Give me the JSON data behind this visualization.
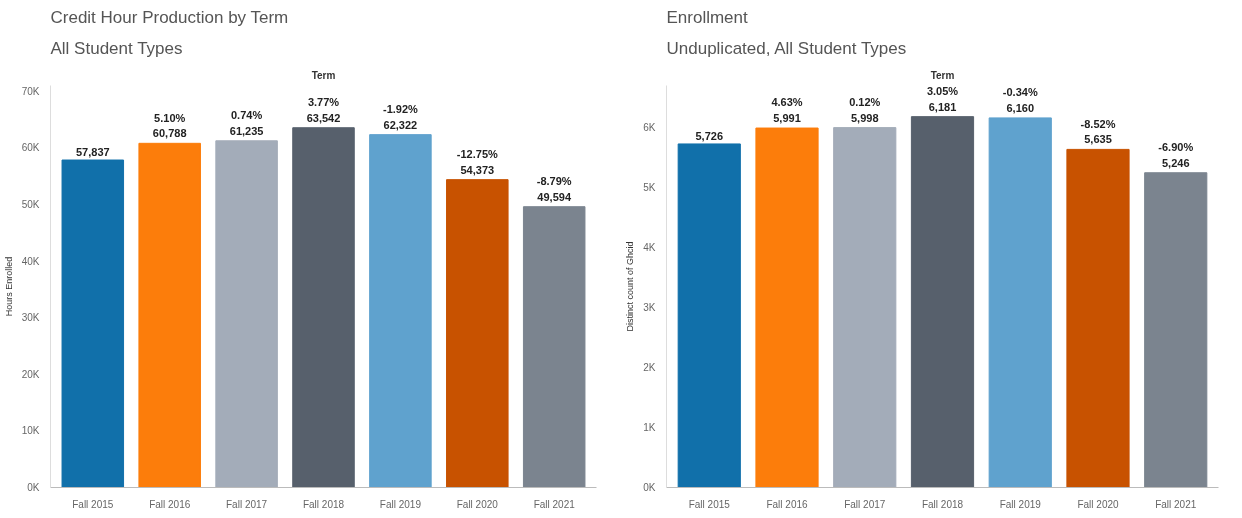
{
  "chart_data": [
    {
      "type": "bar",
      "title": "Credit Hour Production by Term",
      "subtitle": "All Student Types",
      "xlabel": "Term",
      "ylabel": "Hours Enrolled",
      "categories": [
        "Fall 2015",
        "Fall 2016",
        "Fall 2017",
        "Fall 2018",
        "Fall 2019",
        "Fall 2020",
        "Fall 2021"
      ],
      "values": [
        57837,
        60788,
        61235,
        63542,
        62322,
        54373,
        49594
      ],
      "colors": [
        "#1170aa",
        "#fc7d0b",
        "#a3acb9",
        "#57606c",
        "#5fa2ce",
        "#c85200",
        "#7b848f"
      ],
      "value_labels": [
        "57,837",
        "5.10%\n60,788",
        "0.74%\n61,235",
        "3.77%\n63,542",
        "-1.92%\n62,322",
        "-12.75%\n54,373",
        "-8.79%\n49,594"
      ],
      "ylim": [
        0,
        71000
      ],
      "yticks": [
        {
          "value": 0,
          "label": "0K"
        },
        {
          "value": 10000,
          "label": "10K"
        },
        {
          "value": 20000,
          "label": "20K"
        },
        {
          "value": 30000,
          "label": "30K"
        },
        {
          "value": 40000,
          "label": "40K"
        },
        {
          "value": 50000,
          "label": "50K"
        },
        {
          "value": 60000,
          "label": "60K"
        },
        {
          "value": 70000,
          "label": "70K"
        }
      ],
      "grid": false
    },
    {
      "type": "bar",
      "title": "Enrollment",
      "subtitle": "Unduplicated, All Student Types",
      "xlabel": "Term",
      "ylabel": "Distinct count of Ghcid",
      "categories": [
        "Fall 2015",
        "Fall 2016",
        "Fall 2017",
        "Fall 2018",
        "Fall 2019",
        "Fall 2020",
        "Fall 2021"
      ],
      "values": [
        5726,
        5991,
        5998,
        6181,
        6160,
        5635,
        5246
      ],
      "colors": [
        "#1170aa",
        "#fc7d0b",
        "#a3acb9",
        "#57606c",
        "#5fa2ce",
        "#c85200",
        "#7b848f"
      ],
      "value_labels": [
        "5,726",
        "4.63%\n5,991",
        "0.12%\n5,998",
        "3.05%\n6,181",
        "-0.34%\n6,160",
        "-8.52%\n5,635",
        "-6.90%\n5,246"
      ],
      "ylim": [
        0,
        6700
      ],
      "yticks": [
        {
          "value": 0,
          "label": "0K"
        },
        {
          "value": 1000,
          "label": "1K"
        },
        {
          "value": 2000,
          "label": "2K"
        },
        {
          "value": 3000,
          "label": "3K"
        },
        {
          "value": 4000,
          "label": "4K"
        },
        {
          "value": 5000,
          "label": "5K"
        },
        {
          "value": 6000,
          "label": "6K"
        }
      ],
      "grid": false
    }
  ]
}
